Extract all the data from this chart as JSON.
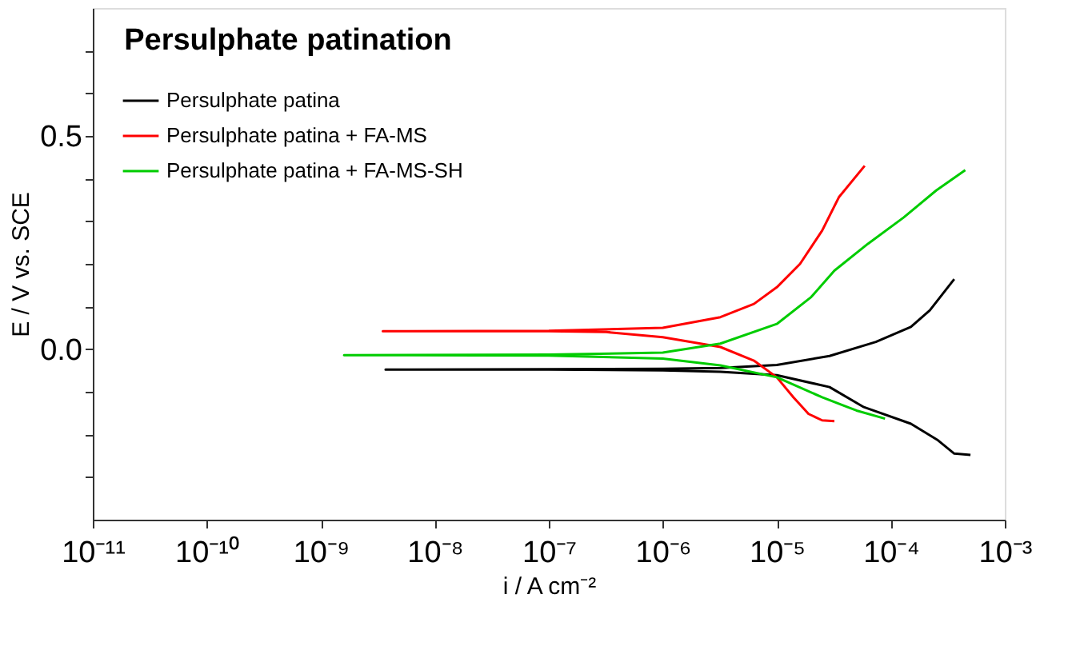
{
  "chart_data": {
    "type": "line",
    "title": "Persulphate patination",
    "xlabel": "i / A cm⁻²",
    "ylabel": "E / V vs. SCE",
    "log": "x",
    "xlim": [
      1e-11,
      0.001
    ],
    "ylim": [
      -0.4,
      0.8
    ],
    "xticks": [
      {
        "value": 1e-11,
        "label": "10⁻¹¹"
      },
      {
        "value": 1e-10,
        "label": "10⁻¹⁰"
      },
      {
        "value": 1e-09,
        "label": "10⁻⁹"
      },
      {
        "value": 1e-08,
        "label": "10⁻⁸"
      },
      {
        "value": 1e-07,
        "label": "10⁻⁷"
      },
      {
        "value": 1e-06,
        "label": "10⁻⁶"
      },
      {
        "value": 1e-05,
        "label": "10⁻⁵"
      },
      {
        "value": 0.0001,
        "label": "10⁻⁴"
      },
      {
        "value": 0.001,
        "label": "10⁻³"
      }
    ],
    "yticks": [
      {
        "value": -0.3,
        "label": null
      },
      {
        "value": -0.2,
        "label": null
      },
      {
        "value": -0.1,
        "label": null
      },
      {
        "value": 0.0,
        "label": "0.0"
      },
      {
        "value": 0.1,
        "label": null
      },
      {
        "value": 0.2,
        "label": null
      },
      {
        "value": 0.3,
        "label": null
      },
      {
        "value": 0.4,
        "label": null
      },
      {
        "value": 0.5,
        "label": "0.5"
      },
      {
        "value": 0.6,
        "label": null
      },
      {
        "value": 0.7,
        "label": null
      }
    ],
    "grid": false,
    "legend": "top left",
    "line_style": "solid",
    "marker": "none",
    "series": [
      {
        "name": "Persulphate patina",
        "color": "#000000",
        "x": [
          0.0005,
          0.00036,
          0.00026,
          0.00015,
          5.8e-05,
          2.9e-05,
          1e-05,
          3.2e-06,
          1e-06,
          1e-07,
          3.7e-09,
          1e-07,
          1e-06,
          3.2e-06,
          1e-05,
          2.9e-05,
          7.4e-05,
          0.00015,
          0.00022,
          0.00036
        ],
        "values": [
          -0.248,
          -0.245,
          -0.214,
          -0.175,
          -0.136,
          -0.089,
          -0.061,
          -0.053,
          -0.05,
          -0.048,
          -0.048,
          -0.047,
          -0.046,
          -0.044,
          -0.037,
          -0.016,
          0.017,
          0.052,
          0.091,
          0.164
        ]
      },
      {
        "name": "Persulphate patina + FA-MS",
        "color": "#ff0000",
        "x": [
          3.2e-05,
          2.5e-05,
          1.9e-05,
          1.4e-05,
          1e-05,
          6.3e-06,
          3.2e-06,
          1e-06,
          3.2e-07,
          1e-07,
          3.5e-09,
          1e-07,
          1e-06,
          3.2e-06,
          6.3e-06,
          1e-05,
          1.6e-05,
          2.5e-05,
          3.5e-05,
          5.9e-05
        ],
        "values": [
          -0.169,
          -0.167,
          -0.152,
          -0.113,
          -0.066,
          -0.027,
          0.005,
          0.028,
          0.04,
          0.042,
          0.042,
          0.043,
          0.05,
          0.075,
          0.106,
          0.145,
          0.2,
          0.278,
          0.356,
          0.43
        ]
      },
      {
        "name": "Persulphate patina + FA-MS-SH",
        "color": "#00cc00",
        "x": [
          8.9e-05,
          5e-05,
          2.5e-05,
          1e-05,
          3.2e-06,
          1e-06,
          1e-07,
          1.6e-09,
          1e-07,
          1e-06,
          3.2e-06,
          1e-05,
          2e-05,
          3.2e-05,
          6.3e-05,
          0.00013,
          0.00025,
          0.00045
        ],
        "values": [
          -0.163,
          -0.144,
          -0.113,
          -0.066,
          -0.038,
          -0.022,
          -0.015,
          -0.014,
          -0.013,
          -0.008,
          0.013,
          0.059,
          0.122,
          0.184,
          0.247,
          0.309,
          0.372,
          0.42
        ]
      }
    ]
  }
}
